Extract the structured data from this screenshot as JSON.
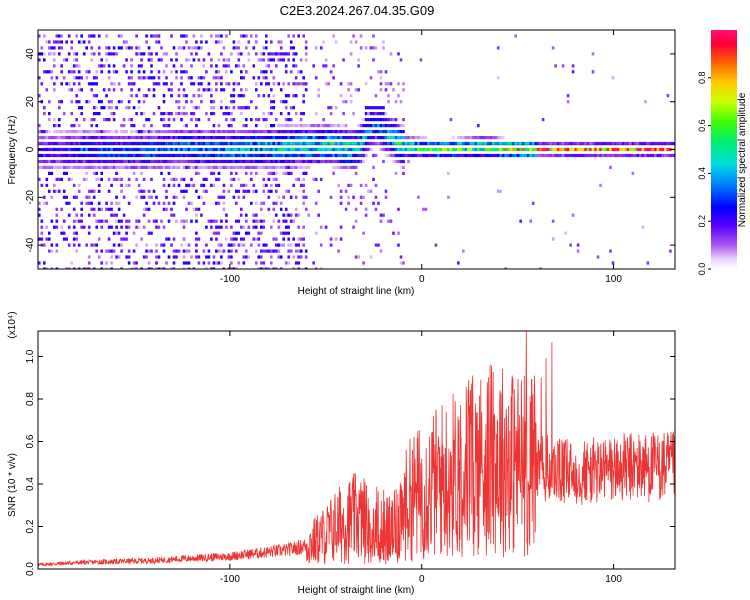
{
  "title": "C2E3.2024.267.04.35.G09",
  "chart_data": [
    {
      "type": "heatmap",
      "xlabel": "Height of straight line (km)",
      "ylabel": "Frequency (Hz)",
      "xlim": [
        -200,
        132
      ],
      "ylim": [
        -50,
        50
      ],
      "x_ticks": [
        -100,
        0,
        100
      ],
      "y_ticks": [
        -40,
        -20,
        0,
        20,
        40
      ],
      "colorbar": {
        "label": "Normalized spectral amplitude",
        "range": [
          0,
          1
        ],
        "ticks": [
          "0.0",
          "0.2",
          "0.4",
          "0.6",
          "0.8"
        ]
      },
      "ridge": [
        {
          "x": -195,
          "f": -1.0,
          "a": 0.25
        },
        {
          "x": -175,
          "f": 0.0,
          "a": 0.35
        },
        {
          "x": -150,
          "f": -1.0,
          "a": 0.35
        },
        {
          "x": -125,
          "f": 1.0,
          "a": 0.4
        },
        {
          "x": -100,
          "f": 0.0,
          "a": 0.45
        },
        {
          "x": -75,
          "f": 1.0,
          "a": 0.5
        },
        {
          "x": -50,
          "f": 2.0,
          "a": 0.55
        },
        {
          "x": -35,
          "f": 0.0,
          "a": 0.55
        },
        {
          "x": -25,
          "f": 10.0,
          "a": 0.35
        },
        {
          "x": -10,
          "f": 1.0,
          "a": 0.6
        },
        {
          "x": 10,
          "f": 0.0,
          "a": 0.65
        },
        {
          "x": 30,
          "f": 1.0,
          "a": 0.75
        },
        {
          "x": 50,
          "f": 0.0,
          "a": 0.8
        },
        {
          "x": 70,
          "f": 0.0,
          "a": 0.9
        },
        {
          "x": 100,
          "f": 0.0,
          "a": 0.97
        },
        {
          "x": 130,
          "f": 0.0,
          "a": 1.0
        }
      ]
    },
    {
      "type": "line",
      "xlabel": "Height of straight line (km)",
      "ylabel": "SNR (10 * v/v)",
      "y_multiplier": "(x10⁴)",
      "xlim": [
        -200,
        132
      ],
      "ylim": [
        0,
        1.12
      ],
      "x_ticks": [
        -100,
        0,
        100
      ],
      "y_ticks": [
        "0.0",
        "0.2",
        "0.4",
        "0.6",
        "0.8",
        "1.0"
      ],
      "color": "#ee3333",
      "series": [
        {
          "x": [
            -200,
            -180,
            -160,
            -140,
            -120,
            -100,
            -90,
            -80,
            -70,
            -60,
            -50,
            -45,
            -40,
            -35,
            -30,
            -25,
            -20,
            -15,
            -10,
            -5,
            0,
            10,
            20,
            30,
            40,
            50,
            60,
            70,
            80,
            90,
            100,
            110,
            120,
            132
          ],
          "y": [
            0.02,
            0.03,
            0.035,
            0.04,
            0.05,
            0.06,
            0.07,
            0.08,
            0.09,
            0.11,
            0.16,
            0.2,
            0.22,
            0.24,
            0.23,
            0.22,
            0.2,
            0.18,
            0.28,
            0.34,
            0.36,
            0.42,
            0.46,
            0.5,
            0.52,
            0.5,
            0.48,
            0.46,
            0.45,
            0.46,
            0.47,
            0.48,
            0.48,
            0.48
          ]
        }
      ]
    }
  ]
}
